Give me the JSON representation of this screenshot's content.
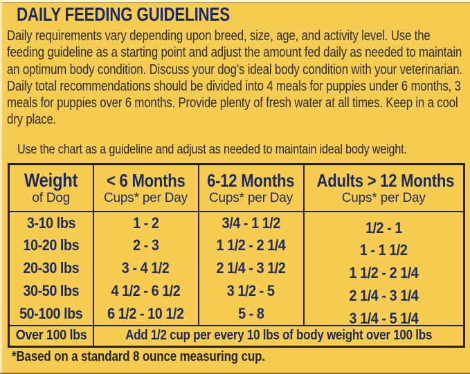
{
  "colors": {
    "background": "#f6cd52",
    "navy": "#1e2a5a",
    "ink": "#2e2c28",
    "border": "#262018"
  },
  "header": {
    "title": "DAILY FEEDING GUIDELINES"
  },
  "intro": {
    "text": "Daily requirements vary depending upon breed, size, age, and activity level. Use the feeding guideline as a starting point and adjust the amount fed daily as needed to maintain an optimum body condition. Discuss your dog’s ideal body condition with your veterinarian. Daily total recommendations should be divided into 4 meals for puppies under 6 months, 3 meals for puppies over 6 months. Provide plenty of fresh water at all times. Keep in a cool dry place."
  },
  "note": {
    "text": "Use the chart as a guideline and adjust as needed to maintain ideal body weight."
  },
  "table": {
    "headers": [
      {
        "title": "Weight",
        "subtitle": "of Dog"
      },
      {
        "title": "< 6 Months",
        "subtitle": "Cups* per Day"
      },
      {
        "title": "6-12 Months",
        "subtitle": "Cups* per Day"
      },
      {
        "title": "Adults > 12 Months",
        "subtitle": "Cups* per Day"
      }
    ],
    "rows": [
      {
        "weight": "3-10 lbs",
        "under_6_months": "1 - 2",
        "months_6_12": "3/4 - 1 1/2",
        "adults": "1/2 - 1"
      },
      {
        "weight": "10-20 lbs",
        "under_6_months": "2 - 3",
        "months_6_12": "1 1/2 - 2 1/4",
        "adults": "1 - 1 1/2"
      },
      {
        "weight": "20-30 lbs",
        "under_6_months": "3 - 4 1/2",
        "months_6_12": "2 1/4 - 3 1/2",
        "adults": "1 1/2 - 2 1/4"
      },
      {
        "weight": "30-50 lbs",
        "under_6_months": "4 1/2 - 6 1/2",
        "months_6_12": "3 1/2 - 5",
        "adults": "2 1/4 - 3 1/4"
      },
      {
        "weight": "50-100 lbs",
        "under_6_months": "6 1/2 - 10 1/2",
        "months_6_12": "5 - 8",
        "adults": "3 1/4 - 5 1/4"
      }
    ],
    "over_100_row": {
      "weight": "Over 100 lbs",
      "instruction": "Add 1/2 cup per every 10 lbs of body weight over 100 lbs"
    }
  },
  "footnote": {
    "text": "*Based on a standard 8 ounce measuring cup."
  }
}
